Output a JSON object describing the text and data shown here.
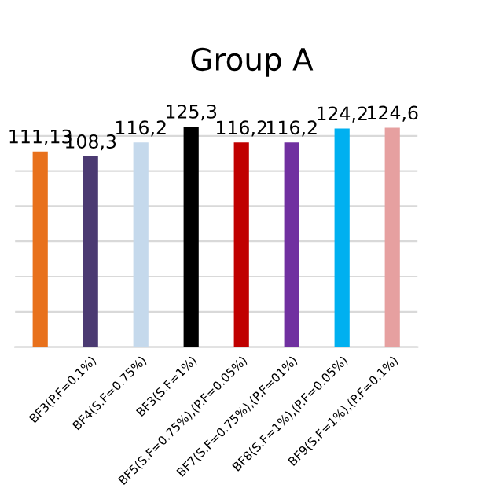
{
  "chart_data": {
    "type": "bar",
    "title": "Group A",
    "categories": [
      null,
      "BF3(P.F=0.1%)",
      "BF4(S.F=0.75%)",
      "BF3(S.F=1%)",
      "BF5(S.F=0.75%),(P.F=0.05%)",
      "BF7(S.F=0.75%),(P.F=01%)",
      "BF8(S.F=1%),(P.F=0.05%)",
      "BF9(S.F=1%),(P.F=0.1%)"
    ],
    "values": [
      111.13,
      108.3,
      116.2,
      125.3,
      116.2,
      116.2,
      124.2,
      124.6
    ],
    "value_labels": [
      "111,13",
      "108,3",
      "116,2",
      "125,3",
      "116,2",
      "116,2",
      "124,2",
      "124,6"
    ],
    "colors": [
      "#e8711c",
      "#4b3a72",
      "#c5d9ec",
      "#000000",
      "#c00000",
      "#7030a0",
      "#00b0f0",
      "#e6a0a0"
    ],
    "ylim": [
      0,
      140
    ],
    "yticks": [
      {
        "value": 0,
        "label": null
      },
      {
        "value": 20,
        "label": null
      },
      {
        "value": 40,
        "label": null
      },
      {
        "value": 60,
        "label": null
      },
      {
        "value": 80,
        "label": null
      },
      {
        "value": 100,
        "label": null
      },
      {
        "value": 120,
        "label": null
      },
      {
        "value": 140,
        "label": null
      }
    ],
    "tick_labels": "x",
    "grid": "y"
  }
}
